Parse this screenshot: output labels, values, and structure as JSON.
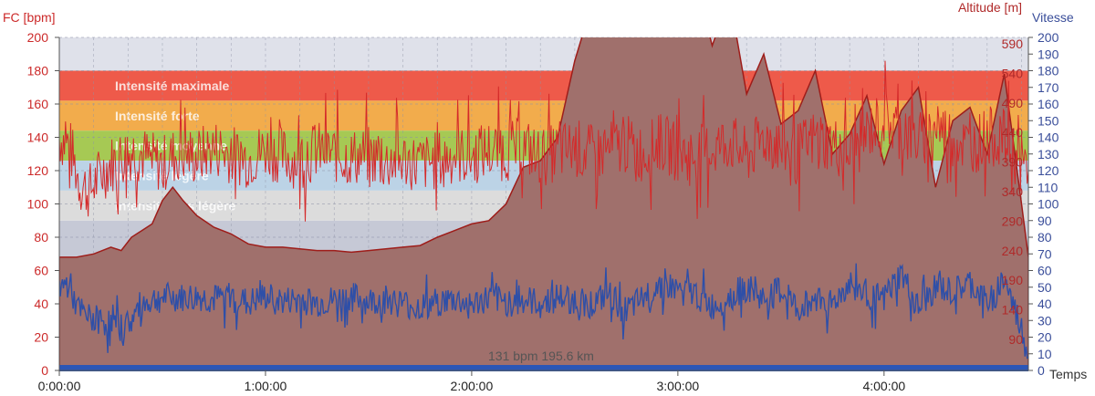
{
  "chart_data": {
    "type": "line",
    "axes": {
      "left": {
        "label": "FC [bpm]",
        "ticks": [
          "0",
          "20",
          "40",
          "60",
          "80",
          "100",
          "120",
          "140",
          "160",
          "180",
          "200"
        ],
        "range": [
          0,
          200
        ],
        "color": "#cc2a2a"
      },
      "right_altitude": {
        "label": "Altitude  [m]",
        "ticks": [
          "90",
          "140",
          "190",
          "240",
          "290",
          "340",
          "390",
          "440",
          "490",
          "540",
          "590"
        ],
        "color": "#b02a2a"
      },
      "right_speed": {
        "label": "Vitesse",
        "ticks": [
          "0",
          "10",
          "20",
          "30",
          "40",
          "50",
          "60",
          "70",
          "80",
          "90",
          "100",
          "110",
          "120",
          "130",
          "140",
          "150",
          "160",
          "170",
          "180",
          "190",
          "200"
        ],
        "range": [
          0,
          200
        ],
        "color": "#3a4e9a"
      },
      "bottom": {
        "label": "Temps",
        "ticks": [
          "0:00:00",
          "1:00:00",
          "2:00:00",
          "3:00:00",
          "4:00:00"
        ],
        "range_minutes": [
          0,
          282
        ]
      }
    },
    "zones": [
      {
        "label": "Intensité maximale",
        "from": 162,
        "to": 180,
        "color": "#ee5a4a"
      },
      {
        "label": "Intensité forte",
        "from": 144,
        "to": 162,
        "color": "#f2ac4c"
      },
      {
        "label": "Intensité moyenne",
        "from": 126,
        "to": 144,
        "color": "#a6c954"
      },
      {
        "label": "Intensité légère",
        "from": 108,
        "to": 126,
        "color": "#bcd3e6"
      },
      {
        "label": "Intensité très légère",
        "from": 90,
        "to": 108,
        "color": "#dcdcdc"
      }
    ],
    "annotation": "131 bpm  195.6 km",
    "series": [
      {
        "color": "#d42a2a",
        "axis": "left",
        "x_minutes": [
          0,
          3,
          6,
          9,
          12,
          15,
          18,
          21,
          24,
          27,
          30,
          35,
          40,
          45,
          50,
          55,
          60,
          65,
          70,
          75,
          80,
          85,
          90,
          95,
          100,
          105,
          110,
          115,
          120,
          125,
          130,
          135,
          140,
          145,
          150,
          155,
          160,
          165,
          170,
          175,
          180,
          185,
          190,
          195,
          200,
          205,
          210,
          215,
          220,
          225,
          230,
          235,
          240,
          245,
          250,
          255,
          260,
          265,
          270,
          275,
          280,
          282
        ],
        "values": [
          140,
          135,
          112,
          108,
          118,
          124,
          128,
          132,
          130,
          126,
          124,
          131,
          128,
          134,
          130,
          127,
          133,
          129,
          126,
          132,
          130,
          128,
          129,
          125,
          127,
          124,
          126,
          130,
          128,
          133,
          131,
          135,
          128,
          131,
          134,
          130,
          132,
          136,
          130,
          137,
          131,
          129,
          133,
          138,
          128,
          140,
          134,
          131,
          140,
          136,
          129,
          142,
          152,
          144,
          138,
          146,
          140,
          134,
          141,
          139,
          124,
          120
        ]
      },
      {
        "color": "#2e4fa8",
        "axis": "left",
        "x_minutes": [
          0,
          3,
          5,
          8,
          12,
          15,
          18,
          21,
          24,
          27,
          30,
          35,
          40,
          45,
          50,
          55,
          60,
          65,
          70,
          75,
          80,
          85,
          90,
          95,
          100,
          105,
          110,
          115,
          120,
          125,
          130,
          135,
          140,
          145,
          150,
          155,
          160,
          165,
          170,
          175,
          180,
          185,
          190,
          195,
          200,
          205,
          210,
          215,
          220,
          225,
          230,
          235,
          240,
          245,
          250,
          255,
          260,
          265,
          270,
          275,
          280,
          282
        ],
        "values": [
          50,
          52,
          38,
          32,
          30,
          28,
          26,
          30,
          40,
          42,
          44,
          43,
          44,
          42,
          45,
          40,
          44,
          41,
          43,
          40,
          42,
          44,
          41,
          43,
          40,
          38,
          41,
          42,
          39,
          43,
          41,
          42,
          40,
          44,
          42,
          40,
          45,
          35,
          43,
          52,
          48,
          46,
          38,
          44,
          50,
          42,
          48,
          36,
          44,
          40,
          52,
          46,
          42,
          58,
          36,
          50,
          46,
          52,
          40,
          55,
          24,
          8
        ]
      }
    ],
    "area_series": {
      "label": "Altitude",
      "color": "#a0706c",
      "stroke": "#9e1d1a",
      "axis": "right_altitude",
      "x_minutes": [
        0,
        5,
        10,
        15,
        18,
        21,
        24,
        27,
        30,
        33,
        36,
        40,
        45,
        50,
        55,
        60,
        65,
        70,
        75,
        80,
        85,
        90,
        95,
        100,
        105,
        110,
        115,
        120,
        125,
        130,
        135,
        140,
        145,
        150,
        155,
        160,
        165,
        170,
        175,
        180,
        185,
        190,
        195,
        200,
        205,
        210,
        215,
        220,
        225,
        230,
        235,
        240,
        245,
        250,
        255,
        260,
        265,
        270,
        275,
        280,
        282
      ],
      "values": [
        68,
        68,
        70,
        74,
        72,
        80,
        84,
        88,
        102,
        110,
        102,
        93,
        86,
        82,
        76,
        74,
        74,
        73,
        72,
        72,
        71,
        72,
        73,
        74,
        75,
        80,
        84,
        88,
        90,
        100,
        122,
        126,
        140,
        186,
        220,
        234,
        240,
        233,
        232,
        240,
        236,
        195,
        225,
        166,
        190,
        148,
        156,
        180,
        130,
        142,
        165,
        124,
        156,
        170,
        110,
        150,
        158,
        130,
        178,
        100,
        68
      ]
    },
    "grid": true
  }
}
